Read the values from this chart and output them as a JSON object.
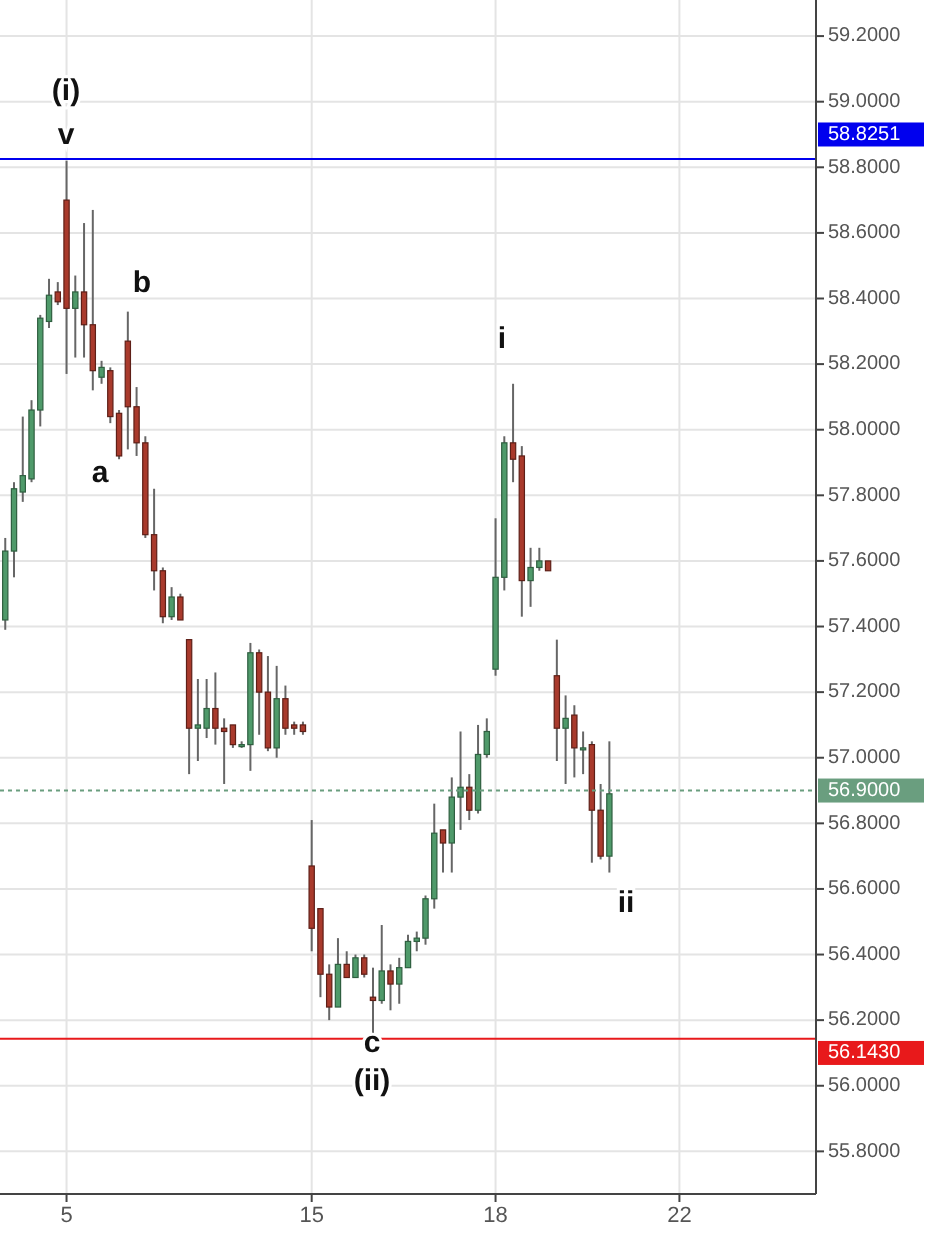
{
  "chart_data": {
    "type": "candlestick",
    "categories": [
      null,
      null,
      null,
      null,
      null,
      null,
      null,
      "5",
      null,
      null,
      null,
      null,
      null,
      null,
      null,
      null,
      null,
      null,
      null,
      null,
      null,
      null,
      null,
      null,
      null,
      null,
      null,
      null,
      null,
      null,
      null,
      null,
      null,
      null,
      null,
      "15",
      null,
      null,
      null,
      null,
      null,
      null,
      null,
      null,
      null,
      null,
      null,
      null,
      null,
      null,
      null,
      null,
      null,
      null,
      null,
      null,
      "18",
      null,
      null,
      null,
      null,
      null,
      null,
      null,
      null,
      null,
      null,
      null,
      null,
      null,
      null,
      null,
      null,
      null,
      null,
      null,
      null,
      "22",
      null,
      null,
      null,
      null,
      null,
      null,
      null,
      null,
      null,
      null,
      null,
      null,
      null,
      null,
      null
    ],
    "ohlc": [
      [
        57.42,
        57.67,
        57.39,
        57.63
      ],
      [
        57.63,
        57.84,
        57.55,
        57.82
      ],
      [
        57.81,
        58.04,
        57.78,
        57.86
      ],
      [
        57.85,
        58.09,
        57.84,
        58.06
      ],
      [
        58.06,
        58.35,
        58.01,
        58.34
      ],
      [
        58.33,
        58.46,
        58.31,
        58.41
      ],
      [
        58.42,
        58.45,
        58.38,
        58.39
      ],
      [
        58.7,
        58.82,
        58.17,
        58.37
      ],
      [
        58.37,
        58.47,
        58.22,
        58.42
      ],
      [
        58.42,
        58.63,
        58.22,
        58.32
      ],
      [
        58.32,
        58.67,
        58.12,
        58.18
      ],
      [
        58.16,
        58.21,
        58.14,
        58.19
      ],
      [
        58.18,
        58.19,
        58.02,
        58.04
      ],
      [
        58.05,
        58.06,
        57.91,
        57.92
      ],
      [
        58.27,
        58.36,
        57.94,
        58.07
      ],
      [
        58.07,
        58.13,
        57.92,
        57.96
      ],
      [
        57.96,
        57.98,
        57.67,
        57.68
      ],
      [
        57.68,
        57.82,
        57.51,
        57.57
      ],
      [
        57.57,
        57.58,
        57.41,
        57.43
      ],
      [
        57.43,
        57.52,
        57.42,
        57.49
      ],
      [
        57.49,
        57.5,
        57.42,
        57.42
      ],
      [
        57.36,
        57.36,
        56.95,
        57.09
      ],
      [
        57.09,
        57.24,
        56.99,
        57.1
      ],
      [
        57.09,
        57.24,
        57.06,
        57.15
      ],
      [
        57.15,
        57.26,
        57.04,
        57.09
      ],
      [
        57.09,
        57.12,
        56.92,
        57.08
      ],
      [
        57.1,
        57.1,
        57.03,
        57.04
      ],
      [
        57.04,
        57.05,
        57.03,
        57.04
      ],
      [
        57.04,
        57.35,
        56.96,
        57.32
      ],
      [
        57.32,
        57.33,
        57.07,
        57.2
      ],
      [
        57.2,
        57.31,
        57.02,
        57.03
      ],
      [
        57.03,
        57.28,
        57.0,
        57.18
      ],
      [
        57.18,
        57.22,
        57.07,
        57.09
      ],
      [
        57.1,
        57.11,
        57.07,
        57.09
      ],
      [
        57.1,
        57.11,
        57.07,
        57.08
      ],
      [
        56.67,
        56.81,
        56.41,
        56.48
      ],
      [
        56.54,
        56.54,
        56.27,
        56.34
      ],
      [
        56.34,
        56.37,
        56.2,
        56.24
      ],
      [
        56.24,
        56.45,
        56.24,
        56.37
      ],
      [
        56.37,
        56.41,
        56.33,
        56.33
      ],
      [
        56.33,
        56.4,
        56.33,
        56.39
      ],
      [
        56.39,
        56.4,
        56.33,
        56.34
      ],
      [
        56.27,
        56.36,
        56.16,
        56.26
      ],
      [
        56.26,
        56.49,
        56.25,
        56.35
      ],
      [
        56.35,
        56.37,
        56.23,
        56.31
      ],
      [
        56.31,
        56.39,
        56.25,
        56.36
      ],
      [
        56.36,
        56.46,
        56.36,
        56.44
      ],
      [
        56.44,
        56.47,
        56.41,
        56.45
      ],
      [
        56.45,
        56.58,
        56.43,
        56.57
      ],
      [
        56.57,
        56.86,
        56.54,
        56.77
      ],
      [
        56.78,
        56.78,
        56.65,
        56.74
      ],
      [
        56.74,
        56.94,
        56.65,
        56.88
      ],
      [
        56.88,
        57.08,
        56.78,
        56.91
      ],
      [
        56.91,
        56.95,
        56.81,
        56.84
      ],
      [
        56.84,
        57.1,
        56.83,
        57.01
      ],
      [
        57.01,
        57.12,
        57.0,
        57.08
      ],
      [
        57.27,
        57.73,
        57.25,
        57.55
      ],
      [
        57.55,
        57.98,
        57.51,
        57.96
      ],
      [
        57.96,
        58.14,
        57.84,
        57.91
      ],
      [
        57.92,
        57.95,
        57.43,
        57.54
      ],
      [
        57.54,
        57.64,
        57.46,
        57.58
      ],
      [
        57.58,
        57.64,
        57.57,
        57.6
      ],
      [
        57.6,
        57.6,
        57.57,
        57.57
      ],
      [
        57.25,
        57.36,
        56.99,
        57.09
      ],
      [
        57.09,
        57.19,
        56.92,
        57.12
      ],
      [
        57.13,
        57.16,
        56.94,
        57.03
      ],
      [
        57.03,
        57.08,
        56.95,
        57.03
      ],
      [
        57.04,
        57.05,
        56.68,
        56.84
      ],
      [
        56.84,
        56.92,
        56.69,
        56.7
      ],
      [
        56.7,
        57.05,
        56.65,
        56.89
      ],
      null,
      null,
      null,
      null,
      null,
      null,
      null,
      null,
      null,
      null,
      null,
      null,
      null,
      null,
      null,
      null,
      null,
      null,
      null,
      null,
      null,
      null,
      null
    ],
    "ylim": [
      55.67,
      59.31
    ],
    "yticks": [
      {
        "value": 55.8,
        "label": "55.8000"
      },
      {
        "value": 56.0,
        "label": "56.0000"
      },
      {
        "value": 56.2,
        "label": "56.2000"
      },
      {
        "value": 56.4,
        "label": "56.4000"
      },
      {
        "value": 56.6,
        "label": "56.6000"
      },
      {
        "value": 56.8,
        "label": "56.8000"
      },
      {
        "value": 57.0,
        "label": "57.0000"
      },
      {
        "value": 57.2,
        "label": "57.2000"
      },
      {
        "value": 57.4,
        "label": "57.4000"
      },
      {
        "value": 57.6,
        "label": "57.6000"
      },
      {
        "value": 57.8,
        "label": "57.8000"
      },
      {
        "value": 58.0,
        "label": "58.0000"
      },
      {
        "value": 58.2,
        "label": "58.2000"
      },
      {
        "value": 58.4,
        "label": "58.4000"
      },
      {
        "value": 58.6,
        "label": "58.6000"
      },
      {
        "value": 58.8,
        "label": "58.8000"
      },
      {
        "value": 59.0,
        "label": "59.0000"
      },
      {
        "value": 59.2,
        "label": "59.2000"
      }
    ],
    "grid": true,
    "ref_lines": [
      {
        "axis": "y",
        "value": 58.8251,
        "label": "58.8251",
        "color": "#0000ee"
      },
      {
        "axis": "y",
        "value": 56.9,
        "label": "56.9000",
        "color": "#6a9e7f",
        "line_style": "dotted"
      },
      {
        "axis": "y",
        "value": 56.143,
        "label": "56.1430",
        "color": "#e8191b"
      }
    ],
    "annotations": [
      "(i)",
      "v",
      "b",
      "a",
      "i",
      "c",
      "(ii)",
      "ii"
    ]
  }
}
